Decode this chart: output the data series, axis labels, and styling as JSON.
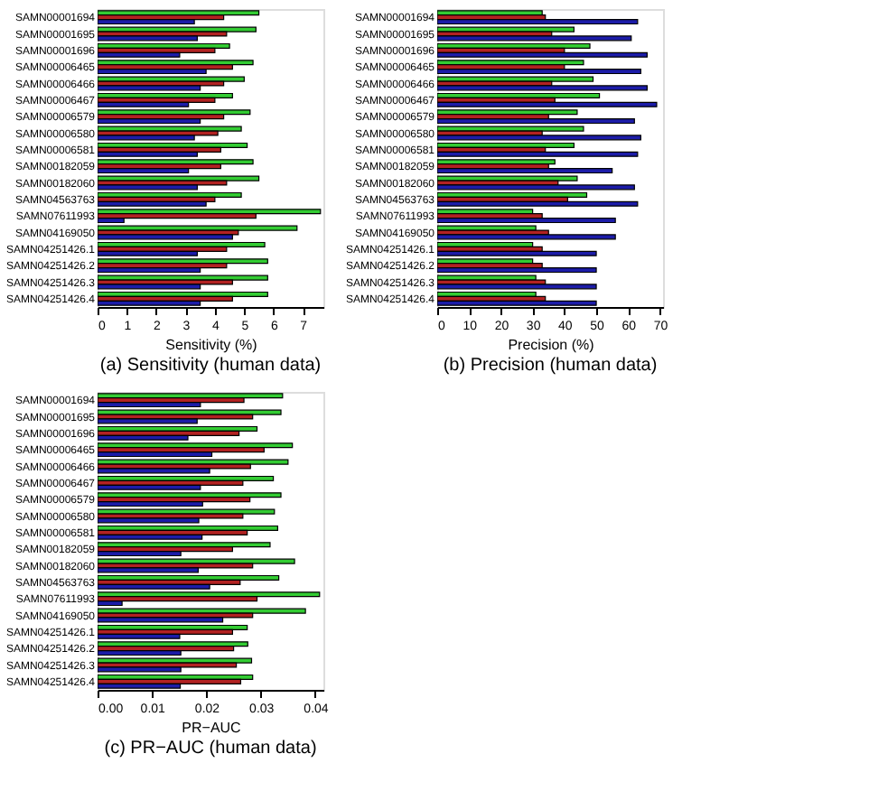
{
  "chart_data": [
    {
      "type": "bar",
      "orientation": "horizontal",
      "title": "(a) Sensitivity (human data)",
      "xlabel": "Sensitivity (%)",
      "categories": [
        "SAMN00001694",
        "SAMN00001695",
        "SAMN00001696",
        "SAMN00006465",
        "SAMN00006466",
        "SAMN00006467",
        "SAMN00006579",
        "SAMN00006580",
        "SAMN00006581",
        "SAMN00182059",
        "SAMN00182060",
        "SAMN04563763",
        "SAMN07611993",
        "SAMN04169050",
        "SAMN04251426.1",
        "SAMN04251426.2",
        "SAMN04251426.3",
        "SAMN04251426.4"
      ],
      "series": [
        {
          "color": "#33cc33",
          "values": [
            5.5,
            5.4,
            4.5,
            5.3,
            5.0,
            4.6,
            5.2,
            4.9,
            5.1,
            5.3,
            5.5,
            4.9,
            7.6,
            6.8,
            5.7,
            5.8,
            5.8,
            5.8
          ]
        },
        {
          "color": "#b22222",
          "values": [
            4.3,
            4.4,
            4.0,
            4.6,
            4.3,
            4.0,
            4.3,
            4.1,
            4.2,
            4.2,
            4.4,
            4.0,
            5.4,
            4.8,
            4.4,
            4.4,
            4.6,
            4.6
          ]
        },
        {
          "color": "#1c1ca8",
          "values": [
            3.3,
            3.4,
            2.8,
            3.7,
            3.5,
            3.1,
            3.5,
            3.3,
            3.4,
            3.1,
            3.4,
            3.7,
            0.9,
            4.6,
            3.4,
            3.5,
            3.5,
            3.5
          ]
        }
      ],
      "xlim": [
        0,
        7.7
      ],
      "xticks": [
        0,
        1,
        2,
        3,
        4,
        5,
        6,
        7
      ]
    },
    {
      "type": "bar",
      "orientation": "horizontal",
      "title": "(b) Precision (human data)",
      "xlabel": "Precision (%)",
      "categories": [
        "SAMN00001694",
        "SAMN00001695",
        "SAMN00001696",
        "SAMN00006465",
        "SAMN00006466",
        "SAMN00006467",
        "SAMN00006579",
        "SAMN00006580",
        "SAMN00006581",
        "SAMN00182059",
        "SAMN00182060",
        "SAMN04563763",
        "SAMN07611993",
        "SAMN04169050",
        "SAMN04251426.1",
        "SAMN04251426.2",
        "SAMN04251426.3",
        "SAMN04251426.4"
      ],
      "series": [
        {
          "color": "#33cc33",
          "values": [
            33,
            43,
            48,
            46,
            49,
            51,
            44,
            46,
            43,
            37,
            44,
            47,
            30,
            31,
            30,
            30,
            31,
            31
          ]
        },
        {
          "color": "#b22222",
          "values": [
            34,
            36,
            40,
            40,
            36,
            37,
            35,
            33,
            34,
            35,
            38,
            41,
            33,
            35,
            33,
            33,
            34,
            34
          ]
        },
        {
          "color": "#1c1ca8",
          "values": [
            63,
            61,
            66,
            64,
            66,
            69,
            62,
            64,
            63,
            55,
            62,
            63,
            56,
            56,
            50,
            50,
            50,
            50
          ]
        }
      ],
      "xlim": [
        0,
        71
      ],
      "xticks": [
        0,
        10,
        20,
        30,
        40,
        50,
        60,
        70
      ]
    },
    {
      "type": "bar",
      "orientation": "horizontal",
      "title": "(c) PR−AUC (human data)",
      "xlabel": "PR−AUC",
      "categories": [
        "SAMN00001694",
        "SAMN00001695",
        "SAMN00001696",
        "SAMN00006465",
        "SAMN00006466",
        "SAMN00006467",
        "SAMN00006579",
        "SAMN00006580",
        "SAMN00006581",
        "SAMN00182059",
        "SAMN00182060",
        "SAMN04563763",
        "SAMN07611993",
        "SAMN04169050",
        "SAMN04251426.1",
        "SAMN04251426.2",
        "SAMN04251426.3",
        "SAMN04251426.4"
      ],
      "series": [
        {
          "color": "#33cc33",
          "values": [
            0.034,
            0.0337,
            0.0293,
            0.0358,
            0.035,
            0.0323,
            0.0337,
            0.0325,
            0.0331,
            0.0317,
            0.0362,
            0.0333,
            0.0408,
            0.0382,
            0.0275,
            0.0276,
            0.0283,
            0.0285
          ]
        },
        {
          "color": "#b22222",
          "values": [
            0.0269,
            0.0285,
            0.026,
            0.0306,
            0.0281,
            0.0267,
            0.028,
            0.0267,
            0.0275,
            0.0248,
            0.0285,
            0.0262,
            0.0293,
            0.0285,
            0.0248,
            0.025,
            0.0255,
            0.0263
          ]
        },
        {
          "color": "#1c1ca8",
          "values": [
            0.0189,
            0.0183,
            0.0166,
            0.021,
            0.0206,
            0.0189,
            0.0193,
            0.0186,
            0.0192,
            0.0153,
            0.0185,
            0.0206,
            0.0045,
            0.023,
            0.0151,
            0.0153,
            0.0153,
            0.0152
          ]
        }
      ],
      "xlim": [
        0,
        0.0415
      ],
      "xticks": [
        {
          "value": 0,
          "label": "0.00"
        },
        {
          "value": 0.01,
          "label": "0.01"
        },
        {
          "value": 0.02,
          "label": "0.02"
        },
        {
          "value": 0.03,
          "label": "0.03"
        },
        {
          "value": 0.04,
          "label": "0.04"
        }
      ]
    }
  ]
}
